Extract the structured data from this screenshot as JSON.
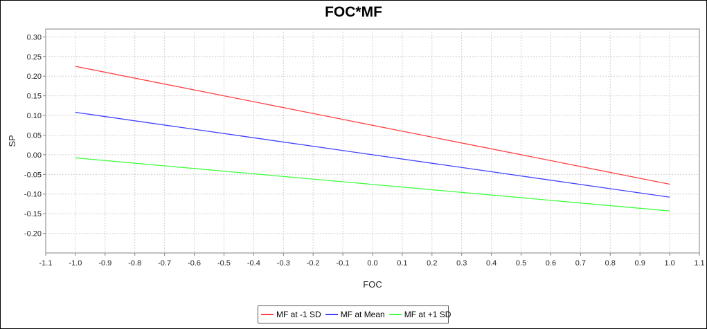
{
  "chart_data": {
    "type": "line",
    "title": "FOC*MF",
    "xlabel": "FOC",
    "ylabel": "SP",
    "xlim": [
      -1.1,
      1.1
    ],
    "ylim": [
      -0.25,
      0.32
    ],
    "xticks": [
      "-1.1",
      "-1.0",
      "-0.9",
      "-0.8",
      "-0.7",
      "-0.6",
      "-0.5",
      "-0.4",
      "-0.3",
      "-0.2",
      "-0.1",
      "0.0",
      "0.1",
      "0.2",
      "0.3",
      "0.4",
      "0.5",
      "0.6",
      "0.7",
      "0.8",
      "0.9",
      "1.0",
      "1.1"
    ],
    "yticks": [
      "0.30",
      "0.25",
      "0.20",
      "0.15",
      "0.10",
      "0.05",
      "0.00",
      "-0.05",
      "-0.10",
      "-0.15",
      "-0.20"
    ],
    "grid": true,
    "legend_position": "bottom",
    "series": [
      {
        "name": "MF at -1 SD",
        "color": "#ff4040",
        "x": [
          -1.0,
          1.0
        ],
        "y": [
          0.225,
          -0.075
        ]
      },
      {
        "name": "MF at Mean",
        "color": "#4040ff",
        "x": [
          -1.0,
          1.0
        ],
        "y": [
          0.108,
          -0.108
        ]
      },
      {
        "name": "MF at +1 SD",
        "color": "#40ff40",
        "x": [
          -1.0,
          1.0
        ],
        "y": [
          -0.008,
          -0.143
        ]
      }
    ]
  }
}
